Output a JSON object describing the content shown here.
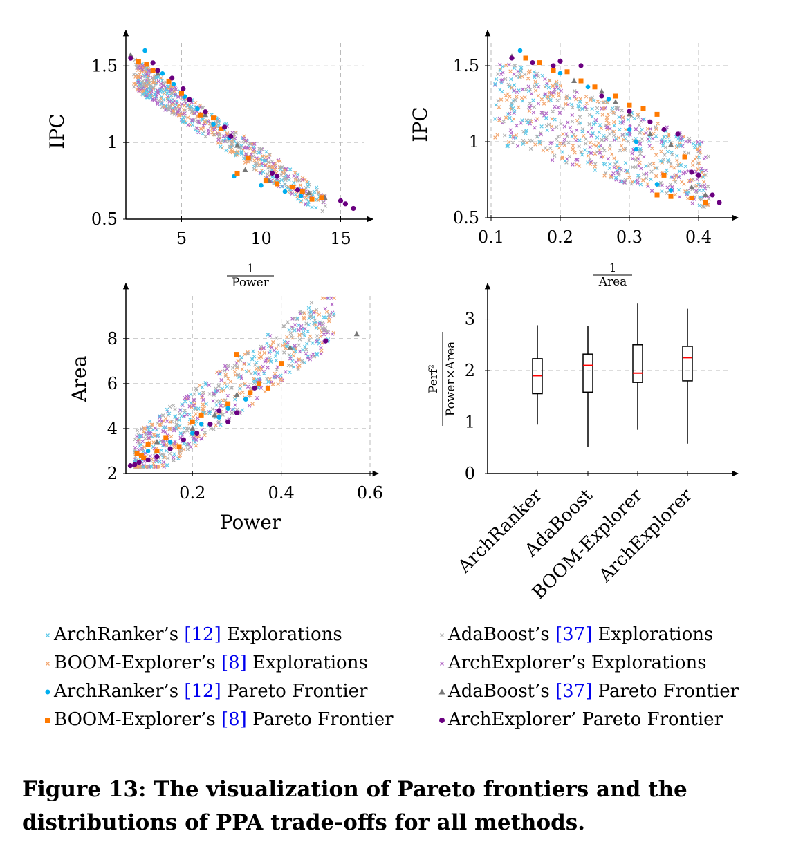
{
  "colors": {
    "archranker": "#00aeef",
    "boom": "#ff7a00",
    "adaboost": "#777777",
    "archexplorer": "#6a0080",
    "archranker_explore": "#5cc8e8",
    "boom_explore": "#f3a56d",
    "adaboost_explore": "#b0b0b0",
    "archexplorer_explore": "#b266c6",
    "median": "#ff0000"
  },
  "legend": [
    {
      "marker": "x",
      "color": "#5cc8e8",
      "pre": "ArchRanker’s ",
      "ref": "[12]",
      "post": " Explorations"
    },
    {
      "marker": "x",
      "color": "#b0b0b0",
      "pre": "AdaBoost’s ",
      "ref": "[37]",
      "post": " Explorations"
    },
    {
      "marker": "x",
      "color": "#f3a56d",
      "pre": "BOOM-Explorer’s ",
      "ref": "[8]",
      "post": " Explorations"
    },
    {
      "marker": "x",
      "color": "#b266c6",
      "pre": "ArchExplorer’s Explorations",
      "ref": "",
      "post": ""
    },
    {
      "marker": "circle",
      "color": "#00aeef",
      "pre": "ArchRanker’s ",
      "ref": "[12]",
      "post": " Pareto Frontier"
    },
    {
      "marker": "triangle",
      "color": "#777777",
      "pre": "AdaBoost’s ",
      "ref": "[37]",
      "post": " Pareto Frontier"
    },
    {
      "marker": "square",
      "color": "#ff7a00",
      "pre": "BOOM-Explorer’s ",
      "ref": "[8]",
      "post": " Pareto Frontier"
    },
    {
      "marker": "dot",
      "color": "#6a0080",
      "pre": "ArchExplorer’ Pareto Frontier",
      "ref": "",
      "post": ""
    }
  ],
  "caption": "Figure 13: The visualization of Pareto frontiers and the distributions of PPA trade-offs for all methods.",
  "chart_data": [
    {
      "type": "scatter",
      "xlabel_num": "1",
      "xlabel_den": "Power",
      "ylabel": "IPC",
      "xlim": [
        1.5,
        16.5
      ],
      "ylim": [
        0.5,
        1.65
      ],
      "xticks": [
        5,
        10,
        15
      ],
      "yticks": [
        0.5,
        1,
        1.5
      ],
      "ytick_labels": [
        "0.5",
        "1",
        "1.5"
      ],
      "grid": true,
      "exploration_shape": {
        "x_range": [
          2,
          15.5
        ],
        "y_top": [
          1.55,
          0.6
        ],
        "y_bottom": [
          1.25,
          0.55
        ]
      },
      "pareto": [
        {
          "name": "ArchRanker’s [12] Pareto Frontier",
          "points": [
            [
              2.7,
              1.6
            ],
            [
              3.2,
              1.52
            ],
            [
              3.8,
              1.45
            ],
            [
              4.5,
              1.38
            ],
            [
              5.2,
              1.3
            ],
            [
              6,
              1.22
            ],
            [
              7,
              1.12
            ],
            [
              8,
              1.03
            ],
            [
              8.3,
              0.78
            ],
            [
              10,
              0.72
            ],
            [
              11.5,
              0.68
            ],
            [
              12.5,
              0.65
            ]
          ]
        },
        {
          "name": "AdaBoost’s [37] Pareto Frontier",
          "points": [
            [
              1.8,
              1.57
            ],
            [
              3.5,
              1.45
            ],
            [
              5.5,
              1.28
            ],
            [
              6.5,
              1.18
            ],
            [
              8.5,
              0.98
            ],
            [
              9,
              0.82
            ],
            [
              10.5,
              0.75
            ],
            [
              13,
              0.67
            ],
            [
              14,
              0.64
            ]
          ]
        },
        {
          "name": "BOOM-Explorer’s [8] Pareto Frontier",
          "points": [
            [
              2.3,
              1.53
            ],
            [
              2.8,
              1.51
            ],
            [
              3.2,
              1.47
            ],
            [
              4.2,
              1.4
            ],
            [
              5,
              1.32
            ],
            [
              6.2,
              1.18
            ],
            [
              7,
              1.16
            ],
            [
              7.5,
              1.09
            ],
            [
              9.2,
              0.9
            ],
            [
              8.5,
              0.8
            ],
            [
              10.3,
              0.75
            ],
            [
              11,
              0.73
            ],
            [
              12,
              0.71
            ],
            [
              12.6,
              0.68
            ],
            [
              13.2,
              0.63
            ],
            [
              13.8,
              0.64
            ]
          ]
        },
        {
          "name": "ArchExplorer’ Pareto Frontier",
          "points": [
            [
              1.8,
              1.55
            ],
            [
              3.2,
              1.52
            ],
            [
              3.5,
              1.47
            ],
            [
              4.4,
              1.42
            ],
            [
              5.1,
              1.35
            ],
            [
              5.5,
              1.28
            ],
            [
              6.5,
              1.2
            ],
            [
              7.7,
              1.1
            ],
            [
              8.1,
              1.04
            ],
            [
              10.7,
              0.8
            ],
            [
              11,
              0.78
            ],
            [
              12.3,
              0.69
            ],
            [
              15,
              0.62
            ],
            [
              15.3,
              0.6
            ],
            [
              15.8,
              0.57
            ]
          ]
        }
      ]
    },
    {
      "type": "scatter",
      "xlabel_num": "1",
      "xlabel_den": "Area",
      "ylabel": "IPC",
      "xlim": [
        0.095,
        0.445
      ],
      "ylim": [
        0.5,
        1.65
      ],
      "xticks": [
        0.1,
        0.2,
        0.3,
        0.4
      ],
      "yticks": [
        0.5,
        1,
        1.5
      ],
      "ytick_labels": [
        "0.5",
        "1",
        "1.5"
      ],
      "grid": true,
      "exploration_shape": {
        "x_range": [
          0.1,
          0.42
        ],
        "y_top": [
          1.55,
          0.8
        ],
        "y_bottom": [
          0.75,
          0.55
        ]
      },
      "pareto": [
        {
          "name": "ArchRanker’s [12] Pareto Frontier",
          "points": [
            [
              0.142,
              1.6
            ],
            [
              0.2,
              1.45
            ],
            [
              0.24,
              1.36
            ],
            [
              0.27,
              1.28
            ],
            [
              0.3,
              1.08
            ],
            [
              0.31,
              1.0
            ],
            [
              0.31,
              0.95
            ],
            [
              0.34,
              0.72
            ],
            [
              0.36,
              0.68
            ]
          ]
        },
        {
          "name": "AdaBoost’s [37] Pareto Frontier",
          "points": [
            [
              0.13,
              1.56
            ],
            [
              0.19,
              1.48
            ],
            [
              0.22,
              1.4
            ],
            [
              0.26,
              1.33
            ],
            [
              0.28,
              1.26
            ],
            [
              0.3,
              1.18
            ],
            [
              0.33,
              1.05
            ],
            [
              0.36,
              0.98
            ],
            [
              0.39,
              0.7
            ],
            [
              0.41,
              0.65
            ]
          ]
        },
        {
          "name": "BOOM-Explorer’s [8] Pareto Frontier",
          "points": [
            [
              0.15,
              1.55
            ],
            [
              0.17,
              1.52
            ],
            [
              0.19,
              1.47
            ],
            [
              0.21,
              1.46
            ],
            [
              0.23,
              1.4
            ],
            [
              0.25,
              1.36
            ],
            [
              0.28,
              1.3
            ],
            [
              0.3,
              1.24
            ],
            [
              0.32,
              1.22
            ],
            [
              0.34,
              1.18
            ],
            [
              0.35,
              0.78
            ],
            [
              0.38,
              0.9
            ],
            [
              0.34,
              0.65
            ],
            [
              0.36,
              0.64
            ],
            [
              0.39,
              0.63
            ],
            [
              0.41,
              0.6
            ]
          ]
        },
        {
          "name": "ArchExplorer’ Pareto Frontier",
          "points": [
            [
              0.13,
              1.55
            ],
            [
              0.16,
              1.52
            ],
            [
              0.19,
              1.5
            ],
            [
              0.2,
              1.53
            ],
            [
              0.23,
              1.5
            ],
            [
              0.26,
              1.3
            ],
            [
              0.3,
              1.2
            ],
            [
              0.33,
              1.13
            ],
            [
              0.35,
              1.08
            ],
            [
              0.37,
              1.05
            ],
            [
              0.39,
              0.8
            ],
            [
              0.4,
              0.78
            ],
            [
              0.42,
              0.65
            ],
            [
              0.43,
              0.6
            ]
          ]
        }
      ]
    },
    {
      "type": "scatter",
      "xlabel": "Power",
      "ylabel": "Area",
      "xlim": [
        0.05,
        0.6
      ],
      "ylim": [
        2,
        9.9
      ],
      "xticks": [
        0.2,
        0.4,
        0.6
      ],
      "yticks": [
        2,
        4,
        6,
        8
      ],
      "xtick_labels": [
        "0.2",
        "0.4",
        "0.6"
      ],
      "grid": true,
      "exploration_shape": {
        "x_range": [
          0.07,
          0.53
        ],
        "y_low": [
          2.5,
          7.5
        ],
        "y_high": [
          3.5,
          9.8
        ]
      },
      "pareto": [
        {
          "name": "ArchRanker’s [12] Pareto Frontier",
          "points": [
            [
              0.1,
              3
            ],
            [
              0.15,
              3.4
            ],
            [
              0.2,
              3.8
            ],
            [
              0.22,
              4.2
            ],
            [
              0.26,
              4.5
            ],
            [
              0.28,
              4.9
            ],
            [
              0.32,
              5.3
            ]
          ]
        },
        {
          "name": "AdaBoost’s [37] Pareto Frontier",
          "points": [
            [
              0.12,
              3.4
            ],
            [
              0.2,
              4.0
            ],
            [
              0.25,
              4.6
            ],
            [
              0.3,
              5.5
            ],
            [
              0.42,
              7.6
            ],
            [
              0.57,
              8.2
            ]
          ]
        },
        {
          "name": "BOOM-Explorer’s [8] Pareto Frontier",
          "points": [
            [
              0.075,
              2.9
            ],
            [
              0.085,
              2.8
            ],
            [
              0.09,
              2.7
            ],
            [
              0.1,
              3.3
            ],
            [
              0.12,
              3.0
            ],
            [
              0.14,
              3.6
            ],
            [
              0.17,
              3.2
            ],
            [
              0.2,
              4.3
            ],
            [
              0.22,
              4.6
            ],
            [
              0.28,
              5.1
            ],
            [
              0.3,
              7.3
            ],
            [
              0.33,
              5.6
            ],
            [
              0.35,
              6.0
            ],
            [
              0.37,
              5.8
            ],
            [
              0.4,
              6.9
            ]
          ]
        },
        {
          "name": "ArchExplorer’ Pareto Frontier",
          "points": [
            [
              0.06,
              2.35
            ],
            [
              0.07,
              2.4
            ],
            [
              0.08,
              2.5
            ],
            [
              0.1,
              2.6
            ],
            [
              0.12,
              2.75
            ],
            [
              0.15,
              3.1
            ],
            [
              0.18,
              3.5
            ],
            [
              0.21,
              3.8
            ],
            [
              0.24,
              4.2
            ],
            [
              0.26,
              4.8
            ],
            [
              0.28,
              4.3
            ],
            [
              0.3,
              4.7
            ],
            [
              0.34,
              5.8
            ],
            [
              0.5,
              7.9
            ]
          ]
        }
      ]
    },
    {
      "type": "box",
      "ylabel_num": "Perf²",
      "ylabel_den": "Power×Area",
      "ylim": [
        0,
        3.45
      ],
      "yticks": [
        0,
        1,
        2,
        3
      ],
      "grid": true,
      "categories": [
        "ArchRanker",
        "AdaBoost",
        "BOOM-Explorer",
        "ArchExplorer"
      ],
      "boxes": [
        {
          "min": 0.95,
          "q1": 1.55,
          "median": 1.9,
          "q3": 2.23,
          "max": 2.88
        },
        {
          "min": 0.52,
          "q1": 1.58,
          "median": 2.1,
          "q3": 2.32,
          "max": 2.87
        },
        {
          "min": 0.85,
          "q1": 1.77,
          "median": 1.95,
          "q3": 2.5,
          "max": 3.3
        },
        {
          "min": 0.58,
          "q1": 1.8,
          "median": 2.25,
          "q3": 2.47,
          "max": 3.2
        }
      ]
    }
  ]
}
